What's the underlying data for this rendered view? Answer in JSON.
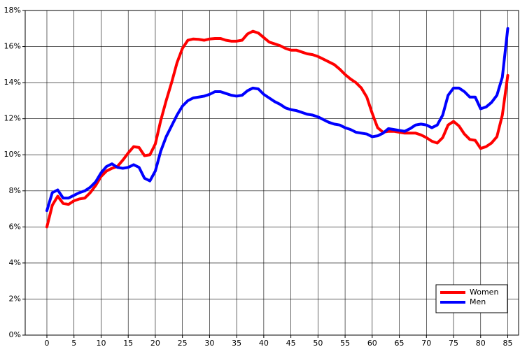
{
  "chart_data": {
    "type": "line",
    "x": [
      0,
      1,
      2,
      3,
      4,
      5,
      6,
      7,
      8,
      9,
      10,
      11,
      12,
      13,
      14,
      15,
      16,
      17,
      18,
      19,
      20,
      21,
      22,
      23,
      24,
      25,
      26,
      27,
      28,
      29,
      30,
      31,
      32,
      33,
      34,
      35,
      36,
      37,
      38,
      39,
      40,
      41,
      42,
      43,
      44,
      45,
      46,
      47,
      48,
      49,
      50,
      51,
      52,
      53,
      54,
      55,
      56,
      57,
      58,
      59,
      60,
      61,
      62,
      63,
      64,
      65,
      66,
      67,
      68,
      69,
      70,
      71,
      72,
      73,
      74,
      75,
      76,
      77,
      78,
      79,
      80,
      81,
      82,
      83,
      84,
      85
    ],
    "series": [
      {
        "name": "Women",
        "color": "#ff0000",
        "values": [
          6.0,
          7.2,
          7.7,
          7.3,
          7.25,
          7.45,
          7.55,
          7.6,
          7.9,
          8.3,
          8.8,
          9.1,
          9.25,
          9.35,
          9.7,
          10.1,
          10.45,
          10.4,
          9.95,
          10.0,
          10.6,
          11.9,
          13.0,
          14.0,
          15.1,
          15.9,
          16.35,
          16.42,
          16.4,
          16.35,
          16.42,
          16.45,
          16.45,
          16.35,
          16.3,
          16.3,
          16.35,
          16.7,
          16.85,
          16.75,
          16.5,
          16.25,
          16.15,
          16.05,
          15.9,
          15.8,
          15.8,
          15.7,
          15.6,
          15.55,
          15.45,
          15.3,
          15.15,
          15.0,
          14.75,
          14.45,
          14.2,
          14.0,
          13.7,
          13.2,
          12.3,
          11.5,
          11.25,
          11.3,
          11.3,
          11.25,
          11.2,
          11.2,
          11.2,
          11.1,
          10.95,
          10.75,
          10.65,
          10.95,
          11.65,
          11.85,
          11.6,
          11.15,
          10.85,
          10.8,
          10.35,
          10.45,
          10.65,
          11.0,
          12.2,
          14.4
        ]
      },
      {
        "name": "Men",
        "color": "#0000ff",
        "values": [
          6.9,
          7.9,
          8.05,
          7.6,
          7.6,
          7.75,
          7.9,
          8.0,
          8.2,
          8.5,
          9.0,
          9.35,
          9.5,
          9.3,
          9.25,
          9.3,
          9.45,
          9.3,
          8.7,
          8.55,
          9.1,
          10.2,
          11.0,
          11.6,
          12.2,
          12.7,
          13.0,
          13.15,
          13.2,
          13.25,
          13.35,
          13.5,
          13.5,
          13.4,
          13.3,
          13.25,
          13.3,
          13.55,
          13.7,
          13.65,
          13.35,
          13.15,
          12.95,
          12.8,
          12.6,
          12.5,
          12.45,
          12.35,
          12.25,
          12.2,
          12.1,
          11.95,
          11.8,
          11.7,
          11.65,
          11.5,
          11.4,
          11.25,
          11.2,
          11.15,
          11.0,
          11.05,
          11.2,
          11.45,
          11.4,
          11.35,
          11.3,
          11.45,
          11.65,
          11.7,
          11.65,
          11.5,
          11.65,
          12.2,
          13.3,
          13.7,
          13.7,
          13.5,
          13.2,
          13.2,
          12.55,
          12.65,
          12.9,
          13.3,
          14.3,
          17.0
        ]
      }
    ],
    "xlim": [
      -4,
      87
    ],
    "xticks": [
      0,
      5,
      10,
      15,
      20,
      25,
      30,
      35,
      40,
      45,
      50,
      55,
      60,
      65,
      70,
      75,
      80,
      85
    ],
    "ylim": [
      0,
      18
    ],
    "yticks": [
      {
        "value": 0,
        "label": "0%"
      },
      {
        "value": 2,
        "label": "2%"
      },
      {
        "value": 4,
        "label": "4%"
      },
      {
        "value": 6,
        "label": "6%"
      },
      {
        "value": 8,
        "label": "8%"
      },
      {
        "value": 10,
        "label": "10%"
      },
      {
        "value": 12,
        "label": "12%"
      },
      {
        "value": 14,
        "label": "14%"
      },
      {
        "value": 16,
        "label": "16%"
      },
      {
        "value": 18,
        "label": "18%"
      }
    ],
    "grid": true,
    "legend": "lower right"
  }
}
